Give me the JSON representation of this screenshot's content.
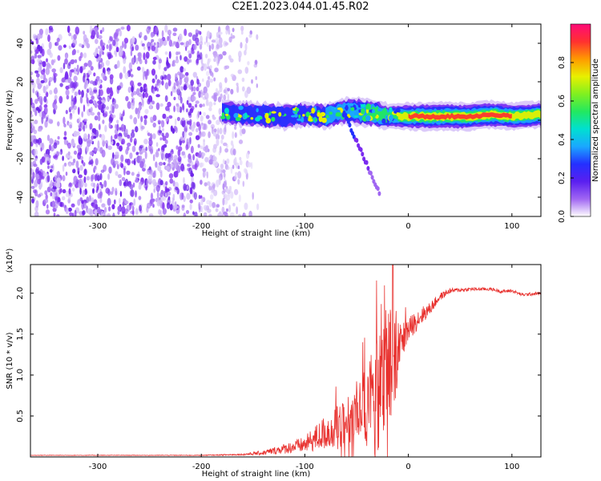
{
  "title": "C2E1.2023.044.01.45.R02",
  "colors": {
    "snr_line": "#e8312e",
    "axes": "#000000",
    "colormap": [
      "#ffffff",
      "#d8c6f8",
      "#a066f2",
      "#7a2bf0",
      "#5a1ff0",
      "#2430ff",
      "#1aa8ff",
      "#00e0d0",
      "#22e860",
      "#80f020",
      "#e8f000",
      "#ff9a00",
      "#ff3030",
      "#ff0a78"
    ]
  },
  "chart_data": [
    {
      "type": "heatmap",
      "xlabel": "Height of straight line (km)",
      "ylabel": "Frequency (Hz)",
      "xlim": [
        -365,
        128
      ],
      "ylim": [
        -50,
        50
      ],
      "x_ticks": [
        -300,
        -200,
        -100,
        0,
        100
      ],
      "x_tick_labels": [
        "-300",
        "-200",
        "-100",
        "0",
        "100"
      ],
      "y_ticks": [
        -40,
        -20,
        0,
        20,
        40
      ],
      "y_tick_labels": [
        "-40",
        "-20",
        "0",
        "20",
        "40"
      ],
      "noise_region": {
        "x_range": [
          -365,
          -155
        ],
        "y_range": [
          -50,
          48
        ]
      },
      "signal_band": {
        "x": [
          -180,
          -150,
          -120,
          -100,
          -80,
          -60,
          -40,
          -20,
          0,
          20,
          40,
          60,
          80,
          100,
          128
        ],
        "center_freq": [
          4,
          3,
          2,
          3,
          2,
          5,
          4,
          2,
          2,
          2,
          2,
          2,
          3,
          2,
          3
        ],
        "amplitude": [
          0.3,
          0.35,
          0.4,
          0.35,
          0.4,
          0.45,
          0.55,
          0.6,
          0.85,
          0.95,
          0.95,
          0.9,
          0.9,
          0.85,
          0.8
        ]
      },
      "colorbar": {
        "label": "Normalized spectral amplitude",
        "range": [
          0,
          1
        ],
        "ticks": [
          0,
          0.2,
          0.4,
          0.6,
          0.8
        ],
        "tick_labels": [
          "0.0",
          "0.2",
          "0.4",
          "0.6",
          "0.8"
        ]
      }
    },
    {
      "type": "line",
      "xlabel": "Height of straight line (km)",
      "ylabel": "SNR (10 * v/v)",
      "y_multiplier": "(x10⁴)",
      "xlim": [
        -365,
        128
      ],
      "ylim": [
        0,
        2.35
      ],
      "x_ticks": [
        -300,
        -200,
        -100,
        0,
        100
      ],
      "x_tick_labels": [
        "-300",
        "-200",
        "-100",
        "0",
        "100"
      ],
      "y_ticks": [
        0.5,
        1.0,
        1.5,
        2.0
      ],
      "y_tick_labels": [
        "0.5",
        "1.0",
        "1.5",
        "2.0"
      ],
      "series": [
        {
          "x": [
            -365,
            -300,
            -250,
            -200,
            -160,
            -140,
            -120,
            -100,
            -80,
            -60,
            -40,
            -30,
            -20,
            -15,
            -10,
            0,
            10,
            20,
            30,
            40,
            60,
            80,
            90,
            100,
            110,
            128
          ],
          "y": [
            0.02,
            0.02,
            0.02,
            0.02,
            0.03,
            0.05,
            0.1,
            0.15,
            0.3,
            0.4,
            0.65,
            0.9,
            1.2,
            1.1,
            1.35,
            1.55,
            1.7,
            1.8,
            1.95,
            2.03,
            2.05,
            2.05,
            2.02,
            2.03,
            1.98,
            2.0
          ],
          "noise_spread": [
            0.003,
            0.003,
            0.003,
            0.004,
            0.01,
            0.03,
            0.06,
            0.1,
            0.22,
            0.3,
            0.45,
            0.6,
            0.8,
            0.6,
            0.25,
            0.15,
            0.12,
            0.08,
            0.05,
            0.03,
            0.02,
            0.02,
            0.02,
            0.02,
            0.02,
            0.02
          ],
          "peak": {
            "x": -15,
            "y": 2.35
          }
        }
      ]
    }
  ]
}
